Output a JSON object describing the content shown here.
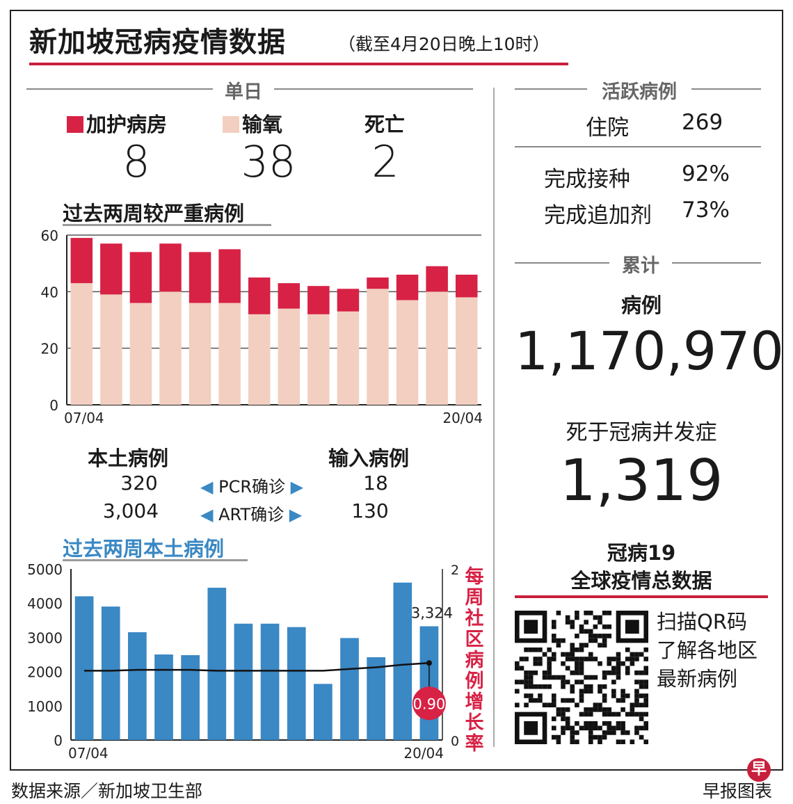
{
  "title": "新加坡冠病疫情数据",
  "subtitle": "（截至4月20日晚上10时）",
  "daily": {
    "heading": "单日",
    "icu_label": "加护病房",
    "icu_value": "8",
    "oxygen_label": "输氧",
    "oxygen_value": "38",
    "death_label": "死亡",
    "death_value": "2"
  },
  "active": {
    "heading": "活跃病例",
    "hospital_label": "住院",
    "hospital_value": "269",
    "vaccinated_label": "完成接种",
    "vaccinated_value": "92%",
    "booster_label": "完成追加剂",
    "booster_value": "73%"
  },
  "cumulative": {
    "heading": "累计",
    "cases_label": "病例",
    "cases_value": "1,170,970",
    "deaths_label": "死于冠病并发症",
    "deaths_value": "1,319"
  },
  "cases_table": {
    "local_label": "本土病例",
    "imported_label": "输入病例",
    "pcr_label": "PCR确诊",
    "art_label": "ART确诊",
    "local_pcr": "320",
    "local_art": "3,004",
    "imported_pcr": "18",
    "imported_art": "130"
  },
  "global": {
    "line1": "冠病19",
    "line2": "全球疫情总数据",
    "qr_line1": "扫描QR码",
    "qr_line2": "了解各地区",
    "qr_line3": "最新病例"
  },
  "footer": {
    "source": "数据来源／新加坡卫生部",
    "credit": "早报图表"
  },
  "colors": {
    "icu": "#d72245",
    "oxygen": "#f2cfc1",
    "local_bar": "#3a88c4",
    "ratio_line": "#111111",
    "accent": "#c8203c"
  },
  "chart_data": [
    {
      "type": "bar",
      "stacked": true,
      "title": "过去两周较严重病例",
      "x_start_label": "07/04",
      "x_end_label": "20/04",
      "ylim": [
        0,
        60
      ],
      "y_ticks": [
        0,
        20,
        40,
        60
      ],
      "series": [
        {
          "name": "输氧",
          "values": [
            43,
            39,
            36,
            40,
            36,
            36,
            32,
            34,
            32,
            33,
            41,
            37,
            40,
            38
          ]
        },
        {
          "name": "加护病房",
          "values": [
            16,
            18,
            18,
            17,
            18,
            19,
            13,
            9,
            10,
            8,
            4,
            9,
            9,
            8
          ]
        }
      ]
    },
    {
      "type": "bar",
      "title": "过去两周本土病例",
      "x_start_label": "07/04",
      "x_end_label": "20/04",
      "ylim": [
        0,
        5000
      ],
      "y_ticks": [
        0,
        1000,
        2000,
        3000,
        4000,
        5000
      ],
      "values": [
        4200,
        3900,
        3150,
        2500,
        2480,
        4450,
        3400,
        3400,
        3300,
        1640,
        2980,
        2420,
        4600,
        3324
      ],
      "last_value_label": "3,324",
      "secondary_axis": {
        "label": "每周社区病例增长率",
        "ylim": [
          0,
          2
        ],
        "y_ticks": [
          0,
          2
        ],
        "values": [
          0.81,
          0.81,
          0.82,
          0.82,
          0.82,
          0.81,
          0.81,
          0.81,
          0.81,
          0.81,
          0.83,
          0.85,
          0.88,
          0.9
        ],
        "last_value_label": "0.90"
      }
    }
  ]
}
